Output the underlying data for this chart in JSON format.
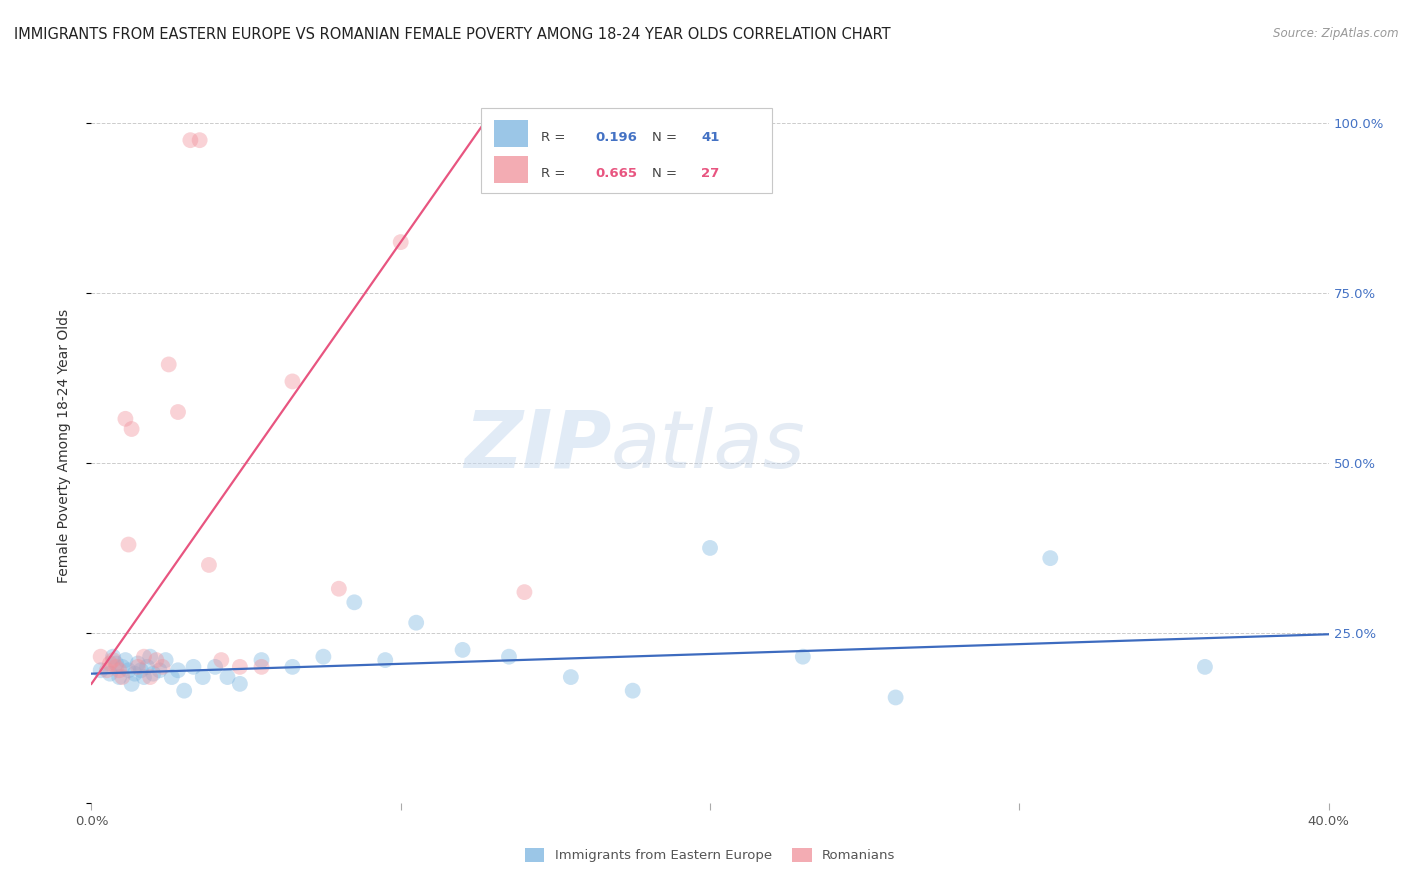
{
  "title": "IMMIGRANTS FROM EASTERN EUROPE VS ROMANIAN FEMALE POVERTY AMONG 18-24 YEAR OLDS CORRELATION CHART",
  "source": "Source: ZipAtlas.com",
  "ylabel": "Female Poverty Among 18-24 Year Olds",
  "xlim": [
    0.0,
    0.4
  ],
  "ylim": [
    0.0,
    1.05
  ],
  "blue_R": "0.196",
  "blue_N": "41",
  "pink_R": "0.665",
  "pink_N": "27",
  "blue_color": "#7ab4e0",
  "pink_color": "#f0909a",
  "blue_line_color": "#3d6bbf",
  "pink_line_color": "#e85580",
  "watermark_zip": "ZIP",
  "watermark_atlas": "atlas",
  "grid_color": "#cccccc",
  "background_color": "#ffffff",
  "title_fontsize": 10.5,
  "axis_label_fontsize": 10,
  "tick_fontsize": 9.5,
  "scatter_size": 130,
  "scatter_alpha": 0.4,
  "line_width": 1.6,
  "blue_scatter_x": [
    0.003,
    0.006,
    0.007,
    0.008,
    0.009,
    0.01,
    0.011,
    0.012,
    0.013,
    0.014,
    0.015,
    0.016,
    0.017,
    0.018,
    0.019,
    0.02,
    0.022,
    0.024,
    0.026,
    0.028,
    0.03,
    0.033,
    0.036,
    0.04,
    0.044,
    0.048,
    0.055,
    0.065,
    0.075,
    0.085,
    0.095,
    0.105,
    0.12,
    0.135,
    0.155,
    0.175,
    0.2,
    0.23,
    0.26,
    0.31,
    0.36
  ],
  "blue_scatter_y": [
    0.195,
    0.19,
    0.215,
    0.205,
    0.185,
    0.2,
    0.21,
    0.195,
    0.175,
    0.19,
    0.205,
    0.195,
    0.185,
    0.2,
    0.215,
    0.19,
    0.195,
    0.21,
    0.185,
    0.195,
    0.165,
    0.2,
    0.185,
    0.2,
    0.185,
    0.175,
    0.21,
    0.2,
    0.215,
    0.295,
    0.21,
    0.265,
    0.225,
    0.215,
    0.185,
    0.165,
    0.375,
    0.215,
    0.155,
    0.36,
    0.2
  ],
  "pink_scatter_x": [
    0.003,
    0.005,
    0.006,
    0.007,
    0.008,
    0.009,
    0.01,
    0.011,
    0.012,
    0.013,
    0.015,
    0.017,
    0.019,
    0.021,
    0.023,
    0.025,
    0.028,
    0.032,
    0.035,
    0.038,
    0.042,
    0.048,
    0.055,
    0.065,
    0.08,
    0.1,
    0.14
  ],
  "pink_scatter_y": [
    0.215,
    0.195,
    0.205,
    0.21,
    0.2,
    0.195,
    0.185,
    0.565,
    0.38,
    0.55,
    0.2,
    0.215,
    0.185,
    0.21,
    0.2,
    0.645,
    0.575,
    0.975,
    0.975,
    0.35,
    0.21,
    0.2,
    0.2,
    0.62,
    0.315,
    0.825,
    0.31
  ],
  "blue_line_x": [
    0.0,
    0.4
  ],
  "blue_line_y": [
    0.19,
    0.248
  ],
  "pink_line_x": [
    0.0,
    0.13
  ],
  "pink_line_y": [
    0.175,
    1.02
  ]
}
